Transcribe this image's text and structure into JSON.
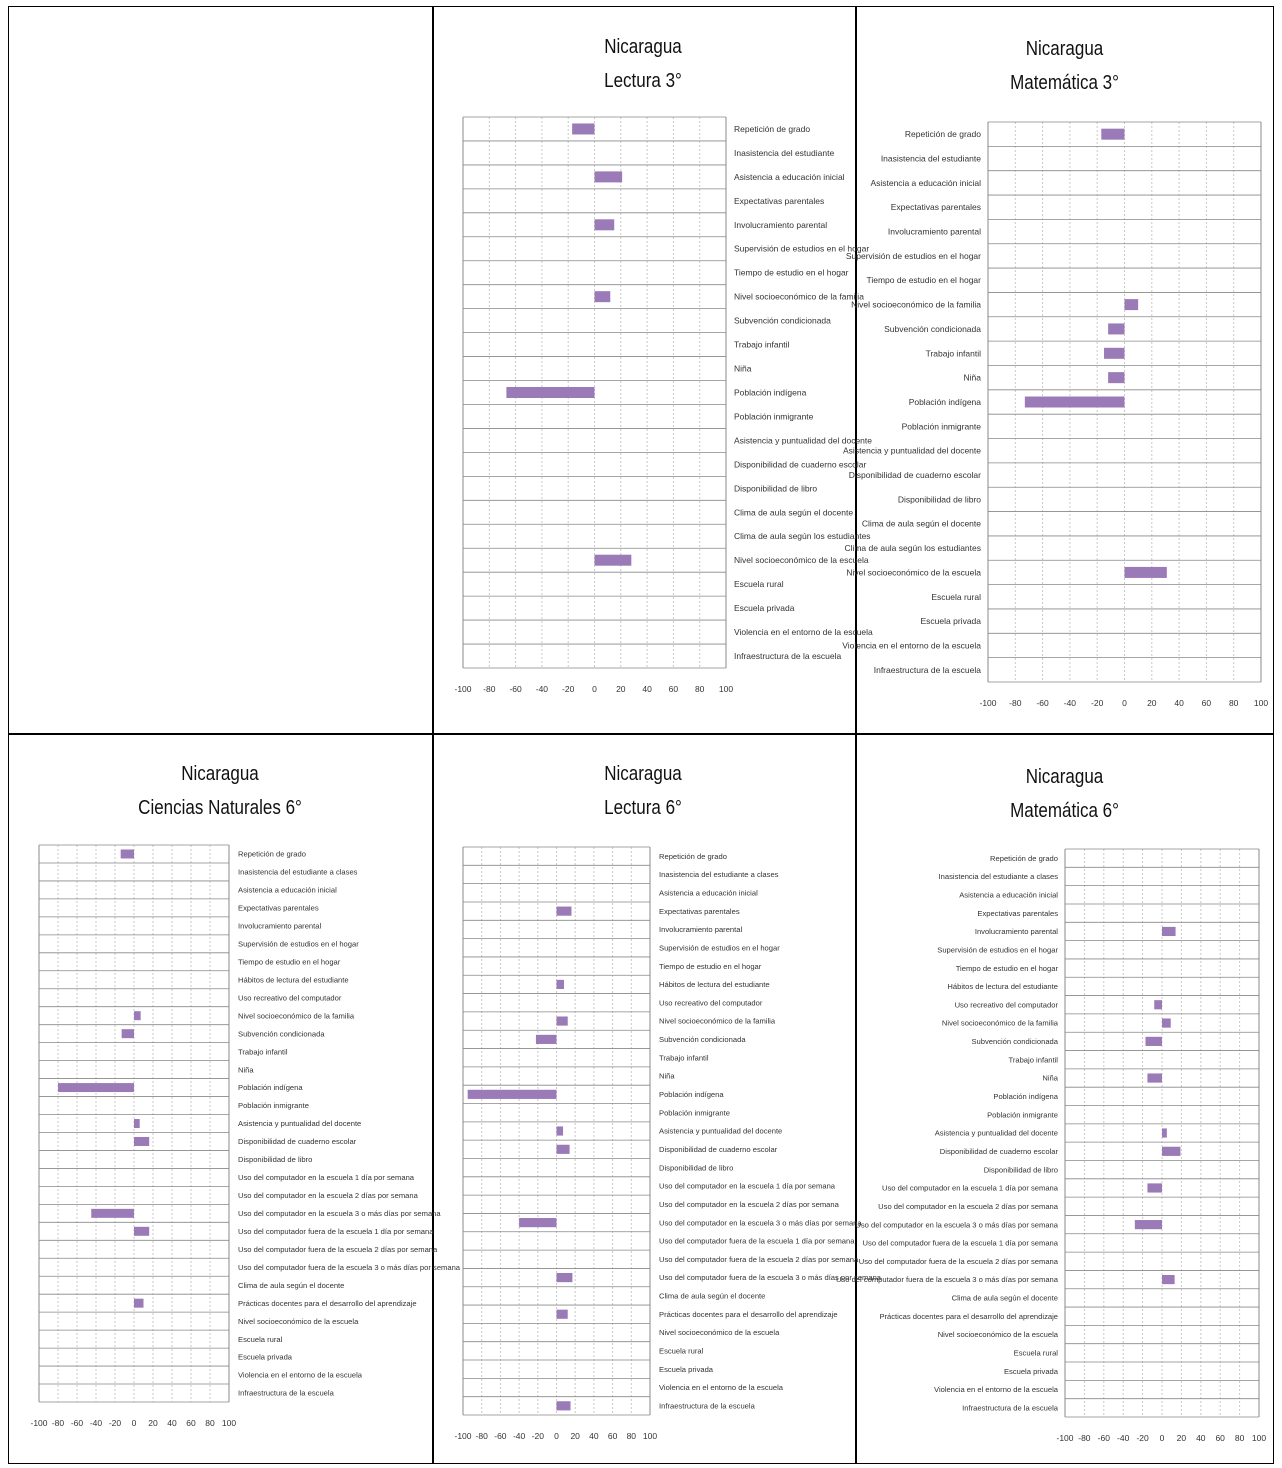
{
  "style": {
    "bar_color": "#9b7ab8",
    "grid_color": "#c8c8c8",
    "axis_color": "#888888"
  },
  "chart_data": [
    {
      "panel": "top-middle",
      "type": "bar",
      "orientation": "horizontal",
      "title": "Nicaragua",
      "subtitle": "Lectura 3°",
      "xlim": [
        -100,
        100
      ],
      "xticks": [
        -100,
        -80,
        -60,
        -40,
        -20,
        0,
        20,
        40,
        60,
        80,
        100
      ],
      "label_side": "right",
      "categories": [
        "Repetición de grado",
        "Inasistencia del estudiante",
        "Asistencia a educación inicial",
        "Expectativas parentales",
        "Involucramiento parental",
        "Supervisión de estudios en el hogar",
        "Tiempo de estudio en el hogar",
        "Nivel socioeconómico de la familia",
        "Subvención condicionada",
        "Trabajo infantil",
        "Niña",
        "Población indígena",
        "Población inmigrante",
        "Asistencia y puntualidad del docente",
        "Disponibilidad de cuaderno escolar",
        "Disponibilidad de libro",
        "Clima de aula según el docente",
        "Clima de aula según los estudiantes",
        "Nivel socioeconómico de la escuela",
        "Escuela rural",
        "Escuela privada",
        "Violencia en el entorno de la escuela",
        "Infraestructura de la escuela"
      ],
      "values": [
        -17,
        0,
        21,
        0,
        15,
        0,
        0,
        12,
        0,
        0,
        0,
        -67,
        0,
        0,
        0,
        0,
        0,
        0,
        28,
        0,
        0,
        0,
        0
      ]
    },
    {
      "panel": "top-right",
      "type": "bar",
      "orientation": "horizontal",
      "title": "Nicaragua",
      "subtitle": "Matemática 3°",
      "xlim": [
        -100,
        100
      ],
      "xticks": [
        -100,
        -80,
        -60,
        -40,
        -20,
        0,
        20,
        40,
        60,
        80,
        100
      ],
      "label_side": "left",
      "categories": [
        "Repetición de grado",
        "Inasistencia del estudiante",
        "Asistencia a educación inicial",
        "Expectativas parentales",
        "Involucramiento parental",
        "Supervisión de estudios en el hogar",
        "Tiempo de estudio en el hogar",
        "Nivel socioeconómico de la familia",
        "Subvención condicionada",
        "Trabajo infantil",
        "Niña",
        "Población indígena",
        "Población inmigrante",
        "Asistencia y puntualidad del docente",
        "Disponibilidad de cuaderno escolar",
        "Disponibilidad de libro",
        "Clima de aula según el docente",
        "Clima de aula según los estudiantes",
        "Nivel socioeconómico de la escuela",
        "Escuela rural",
        "Escuela privada",
        "Violencia en el entorno de la escuela",
        "Infraestructura de la escuela"
      ],
      "values": [
        -17,
        0,
        0,
        0,
        0,
        0,
        0,
        10,
        -12,
        -15,
        -12,
        -73,
        0,
        0,
        0,
        0,
        0,
        0,
        31,
        0,
        0,
        0,
        0
      ]
    },
    {
      "panel": "bottom-left",
      "type": "bar",
      "orientation": "horizontal",
      "title": "Nicaragua",
      "subtitle": "Ciencias Naturales 6°",
      "xlim": [
        -100,
        100
      ],
      "xticks": [
        -100,
        -80,
        -60,
        -40,
        -20,
        0,
        20,
        40,
        60,
        80,
        100
      ],
      "label_side": "right",
      "categories": [
        "Repetición de grado",
        "Inasistencia del estudiante a clases",
        "Asistencia a educación inicial",
        "Expectativas parentales",
        "Involucramiento parental",
        "Supervisión de estudios en el hogar",
        "Tiempo de estudio en el hogar",
        "Hábitos de lectura del estudiante",
        "Uso recreativo del computador",
        "Nivel socioeconómico de la familia",
        "Subvención condicionada",
        "Trabajo infantil",
        "Niña",
        "Población indígena",
        "Población inmigrante",
        "Asistencia y puntualidad del docente",
        "Disponibilidad de cuaderno escolar",
        "Disponibilidad de libro",
        "Uso del computador en la escuela 1 día por semana",
        "Uso del computador en la escuela 2 días por semana",
        "Uso del computador en la escuela 3 o más días por semana",
        "Uso del computador fuera de la escuela 1 día por semana",
        "Uso del computador fuera de la escuela 2 días por semana",
        "Uso del computador fuera de la escuela 3 o más días por semana",
        "Clima de aula según el docente",
        "Prácticas docentes para el desarrollo del aprendizaje",
        "Nivel socioeconómico de la escuela",
        "Escuela rural",
        "Escuela privada",
        "Violencia en el entorno de la escuela",
        "Infraestructura de la escuela"
      ],
      "values": [
        -14,
        0,
        0,
        0,
        0,
        0,
        0,
        0,
        0,
        7,
        -13,
        0,
        0,
        -80,
        0,
        6,
        16,
        0,
        0,
        0,
        -45,
        16,
        0,
        0,
        0,
        10,
        0,
        0,
        0,
        0,
        0
      ]
    },
    {
      "panel": "bottom-middle",
      "type": "bar",
      "orientation": "horizontal",
      "title": "Nicaragua",
      "subtitle": "Lectura 6°",
      "xlim": [
        -100,
        100
      ],
      "xticks": [
        -100,
        -80,
        -60,
        -40,
        -20,
        0,
        20,
        40,
        60,
        80,
        100
      ],
      "label_side": "right",
      "categories": [
        "Repetición de grado",
        "Inasistencia del estudiante a clases",
        "Asistencia a educación inicial",
        "Expectativas parentales",
        "Involucramiento parental",
        "Supervisión de estudios en el hogar",
        "Tiempo de estudio en el hogar",
        "Hábitos de lectura del estudiante",
        "Uso recreativo del computador",
        "Nivel socioeconómico de la familia",
        "Subvención condicionada",
        "Trabajo infantil",
        "Niña",
        "Población indígena",
        "Población inmigrante",
        "Asistencia y puntualidad del docente",
        "Disponibilidad de cuaderno escolar",
        "Disponibilidad de libro",
        "Uso del computador en la escuela 1 día por semana",
        "Uso del computador en la escuela 2 días por semana",
        "Uso del computador en la escuela 3 o más días por semana",
        "Uso del computador fuera de la escuela 1 día por semana",
        "Uso del computador fuera de la escuela 2 días por semana",
        "Uso del computador fuera de la escuela 3 o más días por semana",
        "Clima de aula según el docente",
        "Prácticas docentes para el desarrollo del aprendizaje",
        "Nivel socioeconómico de la escuela",
        "Escuela rural",
        "Escuela privada",
        "Violencia en el entorno de la escuela",
        "Infraestructura de la escuela"
      ],
      "values": [
        0,
        0,
        0,
        16,
        0,
        0,
        0,
        8,
        0,
        12,
        -22,
        0,
        0,
        -95,
        0,
        7,
        14,
        0,
        0,
        0,
        -40,
        0,
        0,
        17,
        0,
        12,
        0,
        0,
        0,
        0,
        15
      ]
    },
    {
      "panel": "bottom-right",
      "type": "bar",
      "orientation": "horizontal",
      "title": "Nicaragua",
      "subtitle": "Matemática 6°",
      "xlim": [
        -100,
        100
      ],
      "xticks": [
        -100,
        -80,
        -60,
        -40,
        -20,
        0,
        20,
        40,
        60,
        80,
        100
      ],
      "label_side": "left",
      "categories": [
        "Repetición de grado",
        "Inasistencia del estudiante a clases",
        "Asistencia a educación inicial",
        "Expectativas parentales",
        "Involucramiento parental",
        "Supervisión de estudios en el hogar",
        "Tiempo de estudio en el hogar",
        "Hábitos de lectura del estudiante",
        "Uso recreativo del computador",
        "Nivel socioeconómico de la familia",
        "Subvención condicionada",
        "Trabajo infantil",
        "Niña",
        "Población indígena",
        "Población inmigrante",
        "Asistencia y puntualidad del docente",
        "Disponibilidad de cuaderno escolar",
        "Disponibilidad de libro",
        "Uso del computador en la escuela 1 día por semana",
        "Uso del computador en la escuela 2 días por semana",
        "Uso del computador en la escuela 3 o más días por semana",
        "Uso del computador fuera de la escuela 1 día por semana",
        "Uso del computador fuera de la escuela 2 días por semana",
        "Uso del computador fuera de la escuela 3 o más días por semana",
        "Clima de aula según el docente",
        "Prácticas docentes para el desarrollo del aprendizaje",
        "Nivel socioeconómico de la escuela",
        "Escuela rural",
        "Escuela privada",
        "Violencia en el entorno de la escuela",
        "Infraestructura de la escuela"
      ],
      "values": [
        0,
        0,
        0,
        0,
        14,
        0,
        0,
        0,
        -8,
        9,
        -17,
        0,
        -15,
        0,
        0,
        5,
        19,
        0,
        -15,
        0,
        -28,
        0,
        0,
        13,
        0,
        0,
        0,
        0,
        0,
        0,
        0
      ]
    }
  ]
}
